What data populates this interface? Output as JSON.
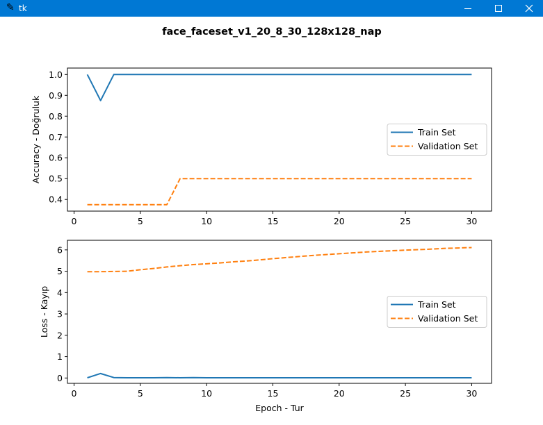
{
  "window": {
    "title": "tk",
    "app_icon": "feather-icon"
  },
  "figure": {
    "suptitle": "face_faceset_v1_20_8_30_128x128_nap"
  },
  "chart_data": [
    {
      "type": "line",
      "xlabel": "",
      "ylabel": "Accuracy - Doğruluk",
      "xlim": [
        -0.5,
        31.5
      ],
      "ylim": [
        0.344,
        1.031
      ],
      "xticks": [
        0,
        5,
        10,
        15,
        20,
        25,
        30
      ],
      "yticks": [
        0.4,
        0.5,
        0.6,
        0.7,
        0.8,
        0.9,
        1.0
      ],
      "ytick_labels": [
        "0.4",
        "0.5",
        "0.6",
        "0.7",
        "0.8",
        "0.9",
        "1.0"
      ],
      "legend": "center-right",
      "grid": false,
      "x": [
        1,
        2,
        3,
        4,
        5,
        6,
        7,
        8,
        9,
        10,
        11,
        12,
        13,
        14,
        15,
        16,
        17,
        18,
        19,
        20,
        21,
        22,
        23,
        24,
        25,
        26,
        27,
        28,
        29,
        30
      ],
      "series": [
        {
          "name": "Train Set",
          "style": "solid",
          "color": "#1f77b4",
          "values": [
            1.0,
            0.875,
            1.0,
            1.0,
            1.0,
            1.0,
            1.0,
            1.0,
            1.0,
            1.0,
            1.0,
            1.0,
            1.0,
            1.0,
            1.0,
            1.0,
            1.0,
            1.0,
            1.0,
            1.0,
            1.0,
            1.0,
            1.0,
            1.0,
            1.0,
            1.0,
            1.0,
            1.0,
            1.0,
            1.0
          ]
        },
        {
          "name": "Validation Set",
          "style": "dashed",
          "color": "#ff7f0e",
          "values": [
            0.375,
            0.375,
            0.375,
            0.375,
            0.375,
            0.375,
            0.375,
            0.5,
            0.5,
            0.5,
            0.5,
            0.5,
            0.5,
            0.5,
            0.5,
            0.5,
            0.5,
            0.5,
            0.5,
            0.5,
            0.5,
            0.5,
            0.5,
            0.5,
            0.5,
            0.5,
            0.5,
            0.5,
            0.5,
            0.5
          ]
        }
      ]
    },
    {
      "type": "line",
      "xlabel": "Epoch - Tur",
      "ylabel": "Loss - Kayıp",
      "xlim": [
        -0.5,
        31.5
      ],
      "ylim": [
        -0.25,
        6.45
      ],
      "xticks": [
        0,
        5,
        10,
        15,
        20,
        25,
        30
      ],
      "yticks": [
        0,
        1,
        2,
        3,
        4,
        5,
        6
      ],
      "ytick_labels": [
        "0",
        "1",
        "2",
        "3",
        "4",
        "5",
        "6"
      ],
      "legend": "center-right",
      "grid": false,
      "x": [
        1,
        2,
        3,
        4,
        5,
        6,
        7,
        8,
        9,
        10,
        11,
        12,
        13,
        14,
        15,
        16,
        17,
        18,
        19,
        20,
        21,
        22,
        23,
        24,
        25,
        26,
        27,
        28,
        29,
        30
      ],
      "series": [
        {
          "name": "Train Set",
          "style": "solid",
          "color": "#1f77b4",
          "values": [
            0.01,
            0.21,
            0.02,
            0.01,
            0.01,
            0.01,
            0.02,
            0.01,
            0.02,
            0.01,
            0.01,
            0.01,
            0.01,
            0.01,
            0.01,
            0.01,
            0.01,
            0.01,
            0.01,
            0.01,
            0.01,
            0.01,
            0.01,
            0.01,
            0.01,
            0.01,
            0.01,
            0.01,
            0.01,
            0.01
          ]
        },
        {
          "name": "Validation Set",
          "style": "dashed",
          "color": "#ff7f0e",
          "values": [
            4.98,
            4.98,
            4.99,
            5.0,
            5.07,
            5.13,
            5.2,
            5.26,
            5.31,
            5.35,
            5.39,
            5.44,
            5.48,
            5.53,
            5.59,
            5.64,
            5.69,
            5.74,
            5.78,
            5.82,
            5.86,
            5.9,
            5.93,
            5.96,
            5.99,
            6.01,
            6.04,
            6.07,
            6.09,
            6.11
          ]
        }
      ]
    }
  ]
}
